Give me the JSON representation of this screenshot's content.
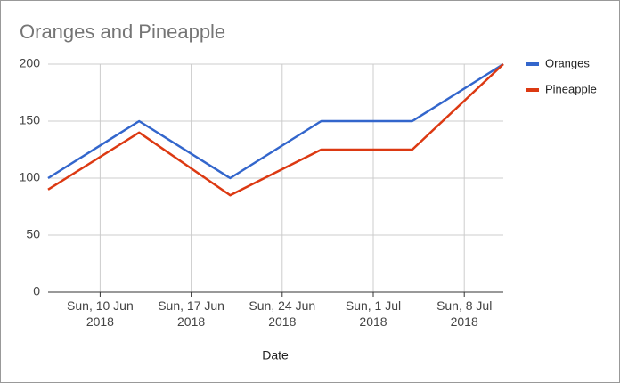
{
  "chart_data": {
    "type": "line",
    "title": "Oranges and Pineapple",
    "x_label": "Date",
    "x": [
      "2018-06-06",
      "2018-06-13",
      "2018-06-20",
      "2018-06-27",
      "2018-07-04",
      "2018-07-11"
    ],
    "series": [
      {
        "name": "Oranges",
        "color": "#3366cc",
        "values": [
          100,
          150,
          100,
          150,
          150,
          200
        ]
      },
      {
        "name": "Pineapple",
        "color": "#dc3912",
        "values": [
          90,
          140,
          85,
          125,
          125,
          200
        ]
      }
    ],
    "xlim": [
      "2018-06-06",
      "2018-07-11"
    ],
    "xticks": [
      {
        "value": "2018-06-10",
        "label": "Sun, 10 Jun 2018"
      },
      {
        "value": "2018-06-17",
        "label": "Sun, 17 Jun 2018"
      },
      {
        "value": "2018-06-24",
        "label": "Sun, 24 Jun 2018"
      },
      {
        "value": "2018-07-01",
        "label": "Sun, 1 Jul 2018"
      },
      {
        "value": "2018-07-08",
        "label": "Sun, 8 Jul 2018"
      }
    ],
    "ylim": [
      0,
      200
    ],
    "yticks": [
      0,
      50,
      100,
      150,
      200
    ],
    "grid": true,
    "legend": "right"
  }
}
